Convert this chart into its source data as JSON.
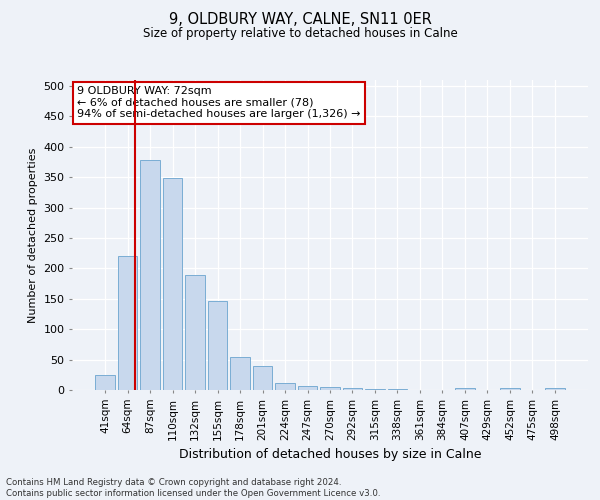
{
  "title": "9, OLDBURY WAY, CALNE, SN11 0ER",
  "subtitle": "Size of property relative to detached houses in Calne",
  "xlabel": "Distribution of detached houses by size in Calne",
  "ylabel": "Number of detached properties",
  "categories": [
    "41sqm",
    "64sqm",
    "87sqm",
    "110sqm",
    "132sqm",
    "155sqm",
    "178sqm",
    "201sqm",
    "224sqm",
    "247sqm",
    "270sqm",
    "292sqm",
    "315sqm",
    "338sqm",
    "361sqm",
    "384sqm",
    "407sqm",
    "429sqm",
    "452sqm",
    "475sqm",
    "498sqm"
  ],
  "values": [
    25,
    220,
    378,
    348,
    190,
    146,
    54,
    40,
    12,
    7,
    5,
    3,
    2,
    1,
    0,
    0,
    4,
    0,
    4,
    0,
    3
  ],
  "bar_color": "#c8d8ed",
  "bar_edge_color": "#7aadd4",
  "vline_x": 1.35,
  "vline_color": "#cc0000",
  "annotation_text": "9 OLDBURY WAY: 72sqm\n← 6% of detached houses are smaller (78)\n94% of semi-detached houses are larger (1,326) →",
  "annotation_box_color": "#ffffff",
  "annotation_box_edge": "#cc0000",
  "background_color": "#eef2f8",
  "ylim": [
    0,
    510
  ],
  "yticks": [
    0,
    50,
    100,
    150,
    200,
    250,
    300,
    350,
    400,
    450,
    500
  ],
  "footer_line1": "Contains HM Land Registry data © Crown copyright and database right 2024.",
  "footer_line2": "Contains public sector information licensed under the Open Government Licence v3.0.",
  "figsize": [
    6.0,
    5.0
  ],
  "dpi": 100
}
